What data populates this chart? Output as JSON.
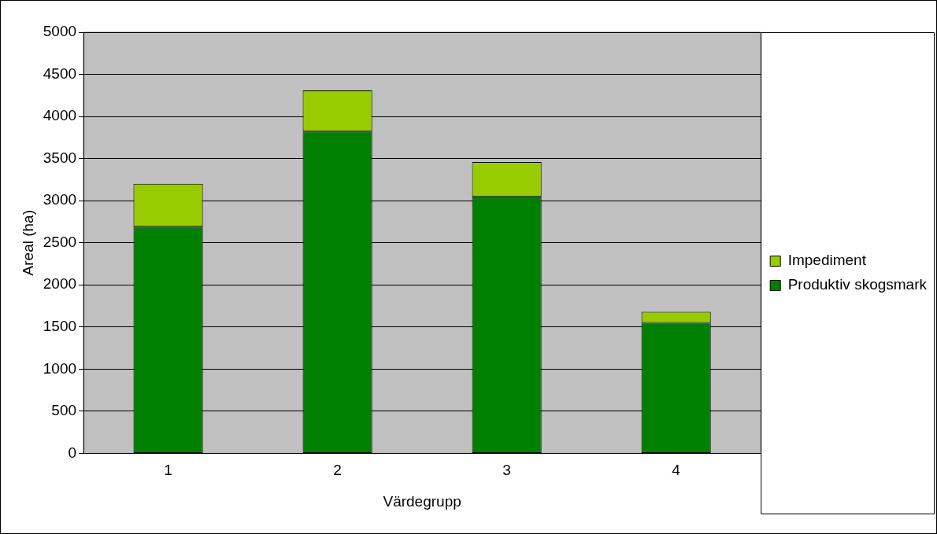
{
  "chart_data": {
    "type": "bar",
    "xlabel": "Värdegrupp",
    "ylabel": "Areal (ha)",
    "categories": [
      "1",
      "2",
      "3",
      "4"
    ],
    "stacked": true,
    "series": [
      {
        "name": "Produktiv skogsmark",
        "color": "#008000",
        "values": [
          2690,
          3820,
          3050,
          1550
        ]
      },
      {
        "name": "Impediment",
        "color": "#99cc00",
        "values": [
          510,
          490,
          410,
          130
        ]
      }
    ],
    "ylim": [
      0,
      5000
    ],
    "yticks": [
      0,
      500,
      1000,
      1500,
      2000,
      2500,
      3000,
      3500,
      4000,
      4500,
      5000
    ],
    "grid": "y",
    "legend": "right"
  }
}
